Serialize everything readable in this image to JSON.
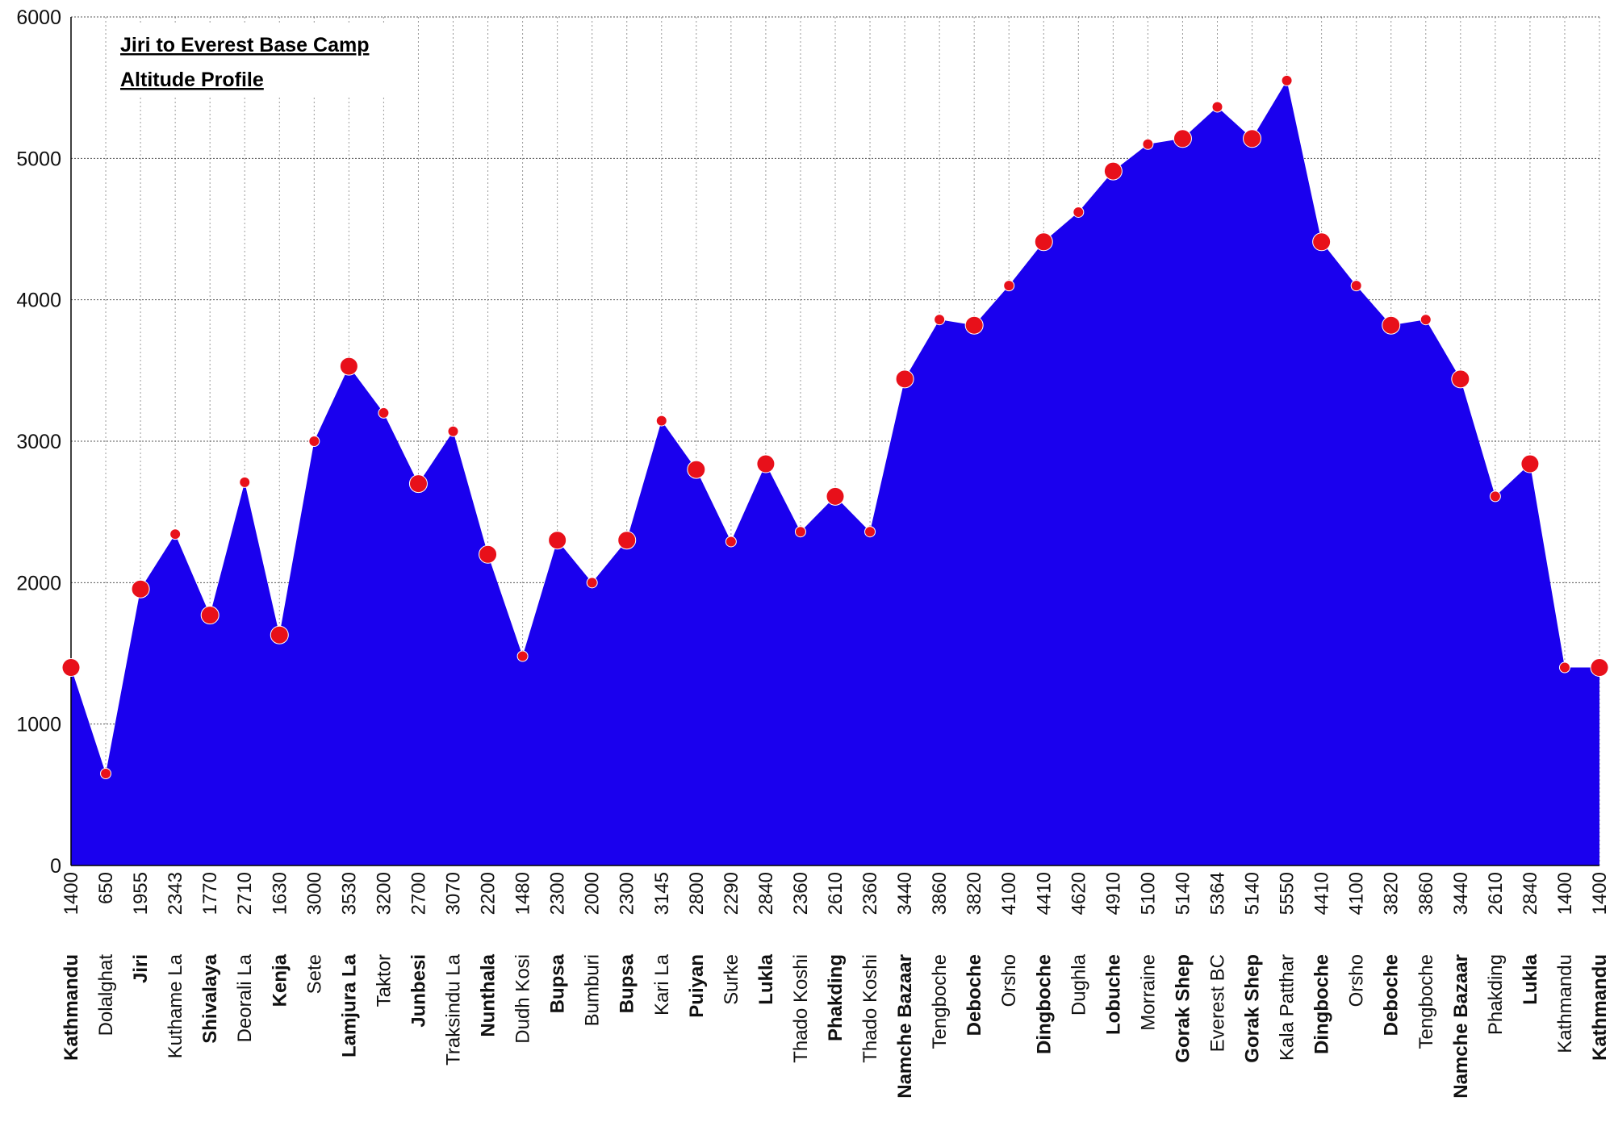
{
  "chart_data": {
    "type": "area",
    "title": "Jiri to Everest Base Camp",
    "subtitle": "Altitude Profile",
    "xlabel": "",
    "ylabel": "",
    "ylim": [
      0,
      6000
    ],
    "y_ticks": [
      "0",
      "1000",
      "2000",
      "3000",
      "4000",
      "5000",
      "6000"
    ],
    "grid": true,
    "colors": {
      "area": "#1a00ee",
      "marker": "#e8101a",
      "grid": "#9a9a9a"
    },
    "categories": [
      "Kathmandu",
      "Dolalghat",
      "Jiri",
      "Kuthame La",
      "Shivalaya",
      "Deorali La",
      "Kenja",
      "Sete",
      "Lamjura La",
      "Taktor",
      "Junbesi",
      "Traksindu La",
      "Nunthala",
      "Dudh Kosi",
      "Bupsa",
      "Bumburi",
      "Bupsa",
      "Kari La",
      "Puiyan",
      "Surke",
      "Lukla",
      "Thado Koshi",
      "Phakding",
      "Thado Koshi",
      "Namche Bazaar",
      "Tengboche",
      "Deboche",
      "Orsho",
      "Dingboche",
      "Dughla",
      "Lobuche",
      "Morraine",
      "Gorak Shep",
      "Everest BC",
      "Gorak Shep",
      "Kala Patthar",
      "Dingboche",
      "Orsho",
      "Deboche",
      "Tengboche",
      "Namche Bazaar",
      "Phakding",
      "Lukla",
      "Kathmandu",
      "Kathmandu"
    ],
    "values": [
      1400,
      650,
      1955,
      2343,
      1770,
      2710,
      1630,
      3000,
      3530,
      3200,
      2700,
      3070,
      2200,
      1480,
      2300,
      2000,
      2300,
      3145,
      2800,
      2290,
      2840,
      2360,
      2610,
      2360,
      3440,
      3860,
      3820,
      4100,
      4410,
      4620,
      4910,
      5100,
      5140,
      5364,
      5140,
      5550,
      4410,
      4100,
      3820,
      3860,
      3440,
      2610,
      2840,
      1400,
      1400
    ],
    "value_labels": [
      "1400",
      "650",
      "1955",
      "2343",
      "1770",
      "2710",
      "1630",
      "3000",
      "3530",
      "3200",
      "2700",
      "3070",
      "2200",
      "1480",
      "2300",
      "2000",
      "2300",
      "3145",
      "2800",
      "2290",
      "2840",
      "2360",
      "2610",
      "2360",
      "3440",
      "3860",
      "3820",
      "4100",
      "4410",
      "4620",
      "4910",
      "5100",
      "5140",
      "5364",
      "5140",
      "5550",
      "4410",
      "4100",
      "3820",
      "3860",
      "3440",
      "2610",
      "2840",
      "1400",
      "1400"
    ],
    "overnight_stop": [
      true,
      false,
      true,
      false,
      true,
      false,
      true,
      false,
      true,
      false,
      true,
      false,
      true,
      false,
      true,
      false,
      true,
      false,
      true,
      false,
      true,
      false,
      true,
      false,
      true,
      false,
      true,
      false,
      true,
      false,
      true,
      false,
      true,
      false,
      true,
      false,
      true,
      false,
      true,
      false,
      true,
      false,
      true,
      false,
      true
    ]
  }
}
